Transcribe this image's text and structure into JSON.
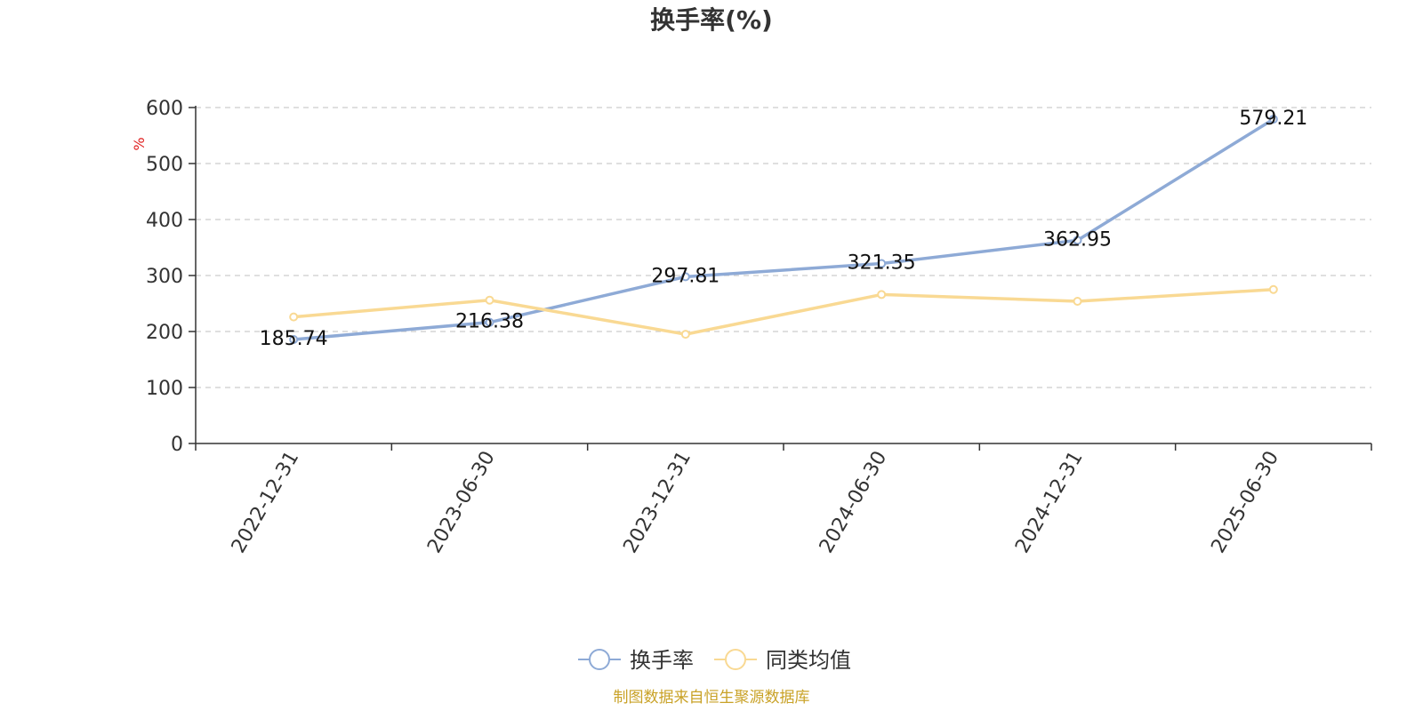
{
  "chart_data": {
    "type": "line",
    "title": "换手率(%)",
    "ylabel": "%",
    "ylim": [
      0,
      600
    ],
    "yticks": [
      0,
      100,
      200,
      300,
      400,
      500,
      600
    ],
    "categories": [
      "2022-12-31",
      "2023-06-30",
      "2023-12-31",
      "2024-06-30",
      "2024-12-31",
      "2025-06-30"
    ],
    "grid": true,
    "legend_position": "bottom",
    "series": [
      {
        "name": "换手率",
        "color": "#8eaad6",
        "values": [
          185.74,
          216.38,
          297.81,
          321.35,
          362.95,
          579.21
        ],
        "labels": [
          "185.74",
          "216.38",
          "297.81",
          "321.35",
          "362.95",
          "579.21"
        ]
      },
      {
        "name": "同类均值",
        "color": "#f9d993",
        "values": [
          226,
          256,
          195,
          266,
          254,
          275
        ]
      }
    ],
    "source": "制图数据来自恒生聚源数据库"
  }
}
